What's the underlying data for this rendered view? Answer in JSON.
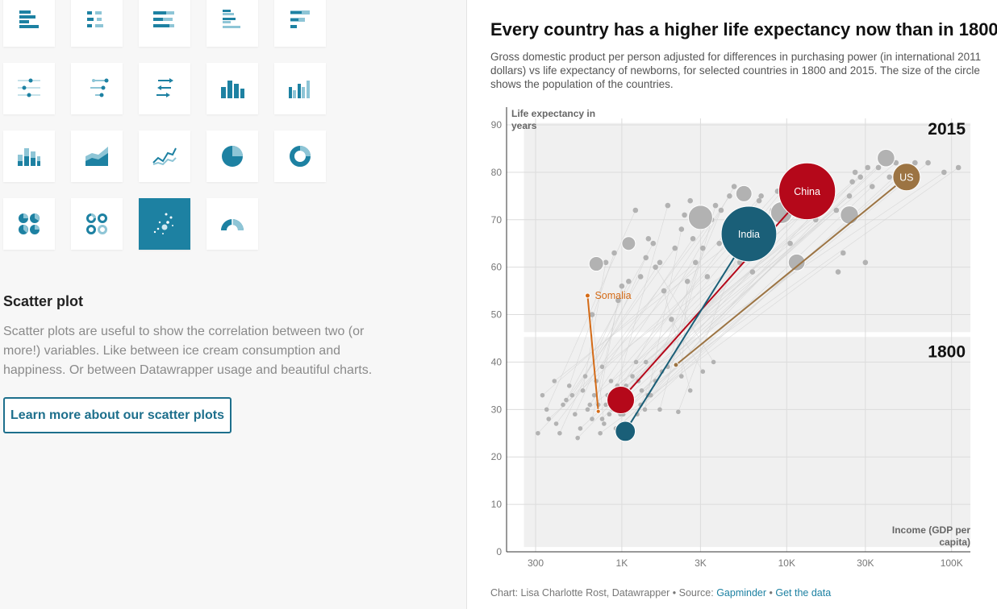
{
  "gallery": {
    "icons": [
      "bar-chart-icon",
      "split-bars-icon",
      "stacked-bars-icon",
      "grouped-bars-icon",
      "bullet-bars-icon",
      "dot-plot-icon",
      "range-plot-icon",
      "arrow-plot-icon",
      "column-chart-icon",
      "grouped-column-icon",
      "stacked-column-icon",
      "area-chart-icon",
      "line-chart-icon",
      "pie-chart-icon",
      "donut-chart-icon",
      "multiple-pies-icon",
      "multiple-donuts-icon",
      "scatter-plot-icon",
      "election-donut-icon"
    ],
    "active_icon": "scatter-plot-icon",
    "section_title": "Scatter plot",
    "section_description": "Scatter plots are useful to show the correlation between two (or more!) variables. Like between ice cream consumption and happiness. Or between Datawrapper usage and beautiful charts.",
    "learn_more_label": "Learn more about our scatter plots",
    "accent_color": "#1d81a2"
  },
  "chart": {
    "title": "Every country has a higher life expectancy now than in 1800",
    "description": "Gross domestic product per person adjusted for differences in purchasing power (in international 2011 dollars) vs life expectancy of newborns, for selected countries in 1800 and 2015. The size of the circle shows the population of the countries.",
    "footer_prefix": "Chart: Lisa Charlotte Rost, Datawrapper • Source: ",
    "footer_source": "Gapminder",
    "footer_separator": " • ",
    "footer_getdata": "Get the data"
  },
  "chart_data": {
    "type": "scatter",
    "ylabel": "Life expectancy in years",
    "xlabel": "Income (GDP per capita)",
    "x_scale": "log",
    "xlim": [
      200,
      130000
    ],
    "ylim": [
      0,
      90
    ],
    "x_ticks": [
      {
        "value": 300,
        "label": "300"
      },
      {
        "value": 1000,
        "label": "1K"
      },
      {
        "value": 3000,
        "label": "3K"
      },
      {
        "value": 10000,
        "label": "10K"
      },
      {
        "value": 30000,
        "label": "30K"
      },
      {
        "value": 100000,
        "label": "100K"
      }
    ],
    "y_ticks": [
      0,
      10,
      20,
      30,
      40,
      50,
      60,
      70,
      80,
      90
    ],
    "period_labels": [
      {
        "text": "2015",
        "y": 88
      },
      {
        "text": "1800",
        "y": 41
      }
    ],
    "grid": true,
    "highlighted": [
      {
        "name": "China",
        "color": "#b5081a",
        "label_inside": true,
        "x1800": 985,
        "y1800": 32,
        "x2015": 13300,
        "y2015": 76,
        "pop1800": 3.2,
        "pop2015": 13.7
      },
      {
        "name": "India",
        "color": "#1a5f78",
        "label_inside": true,
        "x1800": 1050,
        "y1800": 25.4,
        "x2015": 5900,
        "y2015": 67,
        "pop1800": 1.7,
        "pop2015": 13.1
      },
      {
        "name": "US",
        "color": "#9c7443",
        "label_inside": true,
        "x1800": 2130,
        "y1800": 39.4,
        "x2015": 53300,
        "y2015": 79,
        "pop1800": 0.1,
        "pop2015": 3.2
      },
      {
        "name": "Somalia",
        "color": "#d46b17",
        "label_inside": false,
        "x1800": 720,
        "y1800": 29.6,
        "x2015": 620,
        "y2015": 54,
        "pop1800": 0.01,
        "pop2015": 0.1
      }
    ],
    "points_2015": [
      [
        1210,
        72
      ],
      [
        3500,
        70
      ],
      [
        1550,
        65
      ],
      [
        1400,
        62
      ],
      [
        800,
        61
      ],
      [
        4500,
        75
      ],
      [
        2700,
        66
      ],
      [
        5200,
        61
      ],
      [
        6800,
        74
      ],
      [
        20000,
        72
      ],
      [
        25000,
        78
      ],
      [
        33000,
        77
      ],
      [
        40000,
        83
      ],
      [
        46000,
        82
      ],
      [
        52000,
        81
      ],
      [
        36000,
        81
      ],
      [
        28000,
        79
      ],
      [
        17000,
        74
      ],
      [
        9500,
        73
      ],
      [
        7500,
        69
      ],
      [
        3100,
        64
      ],
      [
        2500,
        57
      ],
      [
        1800,
        55
      ],
      [
        2000,
        49
      ],
      [
        1600,
        60
      ],
      [
        1100,
        57
      ],
      [
        900,
        63
      ],
      [
        6200,
        59
      ],
      [
        10500,
        65
      ],
      [
        15000,
        70
      ],
      [
        22000,
        63
      ],
      [
        11000,
        79
      ],
      [
        8800,
        76
      ],
      [
        60000,
        82
      ],
      [
        72000,
        82
      ],
      [
        90000,
        80
      ],
      [
        110000,
        81
      ],
      [
        14000,
        77
      ],
      [
        4000,
        72
      ],
      [
        2300,
        68
      ],
      [
        2800,
        61
      ],
      [
        3300,
        58
      ],
      [
        2100,
        64
      ],
      [
        1700,
        61
      ],
      [
        1300,
        58
      ],
      [
        1000,
        56
      ],
      [
        950,
        53
      ],
      [
        660,
        50
      ],
      [
        1900,
        73
      ],
      [
        4800,
        77
      ],
      [
        12000,
        76
      ],
      [
        17500,
        77
      ],
      [
        24000,
        75
      ],
      [
        31000,
        81
      ],
      [
        3700,
        73
      ],
      [
        5600,
        67
      ],
      [
        7000,
        75
      ],
      [
        8200,
        72
      ],
      [
        13000,
        73
      ],
      [
        19000,
        76
      ],
      [
        26000,
        80
      ],
      [
        42000,
        79
      ],
      [
        20500,
        59
      ],
      [
        2600,
        74
      ],
      [
        3900,
        65
      ],
      [
        1450,
        66
      ],
      [
        2400,
        71
      ],
      [
        5100,
        66
      ],
      [
        30000,
        61
      ],
      [
        6300,
        64
      ]
    ],
    "points_2015_big": [
      {
        "x": 3000,
        "y": 70.5,
        "pop": 2.5
      },
      {
        "x": 40000,
        "y": 83,
        "pop": 1.3
      },
      {
        "x": 24000,
        "y": 71,
        "pop": 1.4
      },
      {
        "x": 9300,
        "y": 71.5,
        "pop": 2.0
      },
      {
        "x": 5500,
        "y": 75.5,
        "pop": 1.1
      },
      {
        "x": 11500,
        "y": 61,
        "pop": 1.2
      },
      {
        "x": 1100,
        "y": 65,
        "pop": 0.8
      },
      {
        "x": 700,
        "y": 60.7,
        "pop": 0.9
      }
    ],
    "points_1800": [
      [
        350,
        30
      ],
      [
        400,
        27
      ],
      [
        460,
        32
      ],
      [
        520,
        29
      ],
      [
        580,
        34
      ],
      [
        640,
        31
      ],
      [
        700,
        36
      ],
      [
        760,
        28
      ],
      [
        820,
        33
      ],
      [
        880,
        30
      ],
      [
        940,
        35
      ],
      [
        1000,
        27
      ],
      [
        1080,
        31
      ],
      [
        1160,
        37
      ],
      [
        1240,
        29
      ],
      [
        1320,
        34
      ],
      [
        1400,
        40
      ],
      [
        1500,
        33
      ],
      [
        1600,
        36
      ],
      [
        1750,
        38
      ],
      [
        1900,
        39
      ],
      [
        2300,
        37
      ],
      [
        2600,
        34
      ],
      [
        3100,
        38
      ],
      [
        3600,
        40
      ],
      [
        420,
        25
      ],
      [
        480,
        35
      ],
      [
        560,
        26
      ],
      [
        620,
        30
      ],
      [
        680,
        33
      ],
      [
        740,
        25
      ],
      [
        800,
        31
      ],
      [
        860,
        36
      ],
      [
        920,
        26
      ],
      [
        980,
        29
      ],
      [
        1060,
        35
      ],
      [
        1140,
        32
      ],
      [
        1220,
        40
      ],
      [
        1300,
        31
      ],
      [
        1380,
        30
      ],
      [
        330,
        33
      ],
      [
        360,
        28
      ],
      [
        440,
        31
      ],
      [
        500,
        33
      ],
      [
        600,
        37
      ],
      [
        660,
        28
      ],
      [
        720,
        31
      ],
      [
        780,
        27
      ],
      [
        840,
        29
      ],
      [
        900,
        32
      ],
      [
        960,
        33
      ],
      [
        1020,
        29
      ],
      [
        1260,
        36
      ],
      [
        1440,
        33
      ],
      [
        1700,
        30
      ],
      [
        2200,
        29.5
      ],
      [
        310,
        25
      ],
      [
        390,
        36
      ],
      [
        540,
        24
      ],
      [
        760,
        39
      ]
    ]
  }
}
